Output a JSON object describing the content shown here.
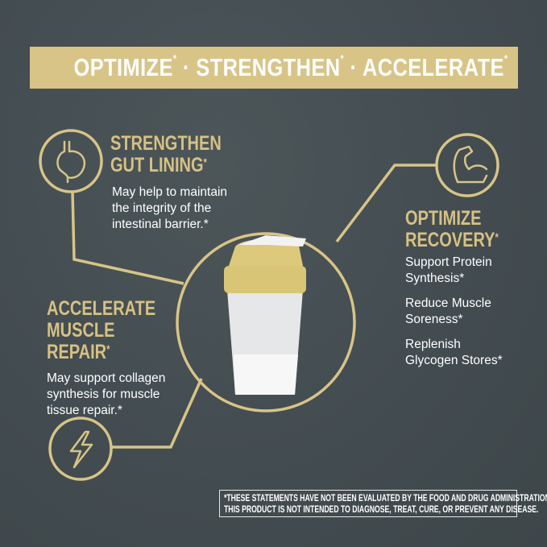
{
  "banner": {
    "words": [
      "OPTIMIZE",
      "STRENGTHEN",
      "ACCELERATE"
    ],
    "asterisk": "*",
    "separator": "·"
  },
  "colors": {
    "background": "#434d51",
    "gold": "#d8c487",
    "text": "#ffffff"
  },
  "features": {
    "gut": {
      "icon": "stomach-icon",
      "title_line1": "STRENGTHEN",
      "title_line2": "GUT LINING",
      "asterisk": "*",
      "body": [
        "May help to maintain",
        "the integrity of the",
        "intestinal barrier.*"
      ]
    },
    "recovery": {
      "icon": "flexed-arm-icon",
      "title_line1": "OPTIMIZE",
      "title_line2": "RECOVERY",
      "asterisk": "*",
      "items": [
        "Support Protein",
        "Synthesis*",
        "Reduce Muscle",
        "Soreness*",
        "Replenish",
        "Glycogen Stores*"
      ]
    },
    "muscle": {
      "icon": "lightning-bolt-icon",
      "title_line1": "ACCELERATE",
      "title_line2": "MUSCLE",
      "title_line3": "REPAIR",
      "asterisk": "*",
      "body": [
        "May support collagen",
        "synthesis for muscle",
        "tissue repair.*"
      ]
    }
  },
  "product_image": "shaker-bottle",
  "disclaimer": {
    "line1": "*THESE STATEMENTS HAVE NOT BEEN EVALUATED BY THE FOOD AND DRUG ADMINISTRATION.",
    "line2": "THIS PRODUCT IS NOT INTENDED TO DIAGNOSE, TREAT, CURE, OR PREVENT ANY DISEASE."
  }
}
